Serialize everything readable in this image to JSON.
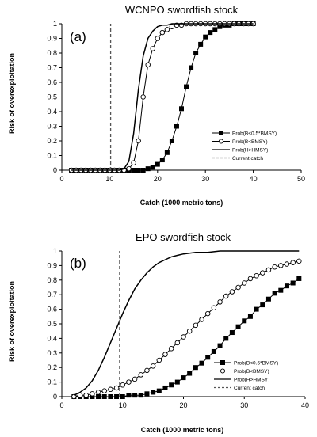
{
  "chart_data": [
    {
      "type": "line",
      "panel_label": "(a)",
      "title": "WCNPO swordfish stock",
      "xlabel": "Catch (1000 metric tons)",
      "ylabel": "Risk of overexploitation",
      "xlim": [
        0,
        50
      ],
      "ylim": [
        0,
        1
      ],
      "xticks": [
        "0",
        "10",
        "20",
        "30",
        "40",
        "50"
      ],
      "yticks": [
        "0",
        "0.1",
        "0.2",
        "0.3",
        "0.4",
        "0.5",
        "0.6",
        "0.7",
        "0.8",
        "0.9",
        "1"
      ],
      "grid": false,
      "legend_position": "lower-right",
      "current_catch": 10.2,
      "series": [
        {
          "name": "Prob(B<0.5*BMSY)",
          "marker": "filled-square",
          "x": [
            2,
            3,
            4,
            5,
            6,
            7,
            8,
            9,
            10,
            11,
            12,
            13,
            14,
            15,
            16,
            17,
            18,
            19,
            20,
            21,
            22,
            23,
            24,
            25,
            26,
            27,
            28,
            29,
            30,
            31,
            32,
            33,
            34,
            35,
            36,
            37,
            38,
            39,
            40
          ],
          "y": [
            0,
            0,
            0,
            0,
            0,
            0,
            0,
            0,
            0,
            0,
            0,
            0,
            0,
            0,
            0,
            0,
            0.01,
            0.02,
            0.04,
            0.07,
            0.12,
            0.2,
            0.3,
            0.42,
            0.57,
            0.7,
            0.8,
            0.86,
            0.91,
            0.94,
            0.96,
            0.98,
            0.99,
            0.99,
            1,
            1,
            1,
            1,
            1
          ]
        },
        {
          "name": "Prob(B<BMSY)",
          "marker": "open-circle",
          "x": [
            2,
            3,
            4,
            5,
            6,
            7,
            8,
            9,
            10,
            11,
            12,
            13,
            14,
            15,
            16,
            17,
            18,
            19,
            20,
            21,
            22,
            23,
            24,
            25,
            26,
            27,
            28,
            29,
            30,
            31,
            32,
            33,
            34,
            35,
            36,
            37,
            38,
            39,
            40
          ],
          "y": [
            0,
            0,
            0,
            0,
            0,
            0,
            0,
            0,
            0,
            0,
            0,
            0,
            0.01,
            0.05,
            0.2,
            0.5,
            0.72,
            0.83,
            0.9,
            0.94,
            0.96,
            0.98,
            0.99,
            0.99,
            1,
            1,
            1,
            1,
            1,
            1,
            1,
            1,
            1,
            1,
            1,
            1,
            1,
            1,
            1
          ]
        },
        {
          "name": "Prob(H>HMSY)",
          "marker": "line",
          "x": [
            2,
            4,
            6,
            8,
            10,
            11,
            12,
            13,
            14,
            15,
            16,
            17,
            18,
            19,
            20,
            21,
            22,
            23,
            24,
            25,
            26,
            28,
            30,
            35,
            40
          ],
          "y": [
            0,
            0,
            0,
            0,
            0,
            0,
            0,
            0.01,
            0.06,
            0.25,
            0.55,
            0.78,
            0.9,
            0.95,
            0.98,
            0.99,
            0.99,
            1,
            1,
            1,
            1,
            1,
            1,
            1,
            1
          ]
        },
        {
          "name": "Current catch",
          "marker": "dashed-vertical",
          "x": [
            10.2,
            10.2
          ],
          "y": [
            0,
            1
          ]
        }
      ]
    },
    {
      "type": "line",
      "panel_label": "(b)",
      "title": "EPO swordfish stock",
      "xlabel": "Catch (1000 metric tons)",
      "ylabel": "Risk of overexploitation",
      "xlim": [
        0,
        40
      ],
      "ylim": [
        0,
        1
      ],
      "xticks": [
        "0",
        "10",
        "20",
        "30",
        "40"
      ],
      "yticks": [
        "0",
        "0.1",
        "0.2",
        "0.3",
        "0.4",
        "0.5",
        "0.6",
        "0.7",
        "0.8",
        "0.9",
        "1"
      ],
      "grid": false,
      "legend_position": "lower-right",
      "current_catch": 9.5,
      "series": [
        {
          "name": "Prob(B<0.5*BMSY)",
          "marker": "filled-square",
          "x": [
            2,
            3,
            4,
            5,
            6,
            7,
            8,
            9,
            10,
            11,
            12,
            13,
            14,
            15,
            16,
            17,
            18,
            19,
            20,
            21,
            22,
            23,
            24,
            25,
            26,
            27,
            28,
            29,
            30,
            31,
            32,
            33,
            34,
            35,
            36,
            37,
            38,
            39
          ],
          "y": [
            0,
            0,
            0,
            0,
            0,
            0,
            0,
            0,
            0,
            0.01,
            0.01,
            0.01,
            0.02,
            0.03,
            0.04,
            0.06,
            0.08,
            0.1,
            0.13,
            0.16,
            0.2,
            0.23,
            0.27,
            0.31,
            0.35,
            0.4,
            0.44,
            0.48,
            0.52,
            0.55,
            0.6,
            0.63,
            0.67,
            0.71,
            0.73,
            0.76,
            0.78,
            0.81
          ]
        },
        {
          "name": "Prob(B<BMSY)",
          "marker": "open-circle",
          "x": [
            2,
            3,
            4,
            5,
            6,
            7,
            8,
            9,
            10,
            11,
            12,
            13,
            14,
            15,
            16,
            17,
            18,
            19,
            20,
            21,
            22,
            23,
            24,
            25,
            26,
            27,
            28,
            29,
            30,
            31,
            32,
            33,
            34,
            35,
            36,
            37,
            38,
            39
          ],
          "y": [
            0,
            0.01,
            0.01,
            0.02,
            0.03,
            0.04,
            0.05,
            0.06,
            0.08,
            0.1,
            0.12,
            0.15,
            0.18,
            0.21,
            0.25,
            0.29,
            0.33,
            0.37,
            0.41,
            0.45,
            0.49,
            0.53,
            0.57,
            0.61,
            0.65,
            0.69,
            0.72,
            0.75,
            0.78,
            0.81,
            0.83,
            0.85,
            0.87,
            0.89,
            0.9,
            0.91,
            0.92,
            0.93
          ]
        },
        {
          "name": "Prob(H>HMSY)",
          "marker": "line",
          "x": [
            2,
            3,
            4,
            5,
            6,
            7,
            8,
            9,
            10,
            11,
            12,
            13,
            14,
            15,
            16,
            17,
            18,
            19,
            20,
            22,
            24,
            26,
            28,
            30,
            32,
            35,
            39
          ],
          "y": [
            0.01,
            0.03,
            0.06,
            0.11,
            0.18,
            0.27,
            0.37,
            0.47,
            0.57,
            0.66,
            0.74,
            0.8,
            0.85,
            0.89,
            0.92,
            0.94,
            0.96,
            0.97,
            0.98,
            0.99,
            0.99,
            1,
            1,
            1,
            1,
            1,
            1
          ]
        },
        {
          "name": "Current catch",
          "marker": "dashed-vertical",
          "x": [
            9.5,
            9.5
          ],
          "y": [
            0,
            1
          ]
        }
      ]
    }
  ]
}
